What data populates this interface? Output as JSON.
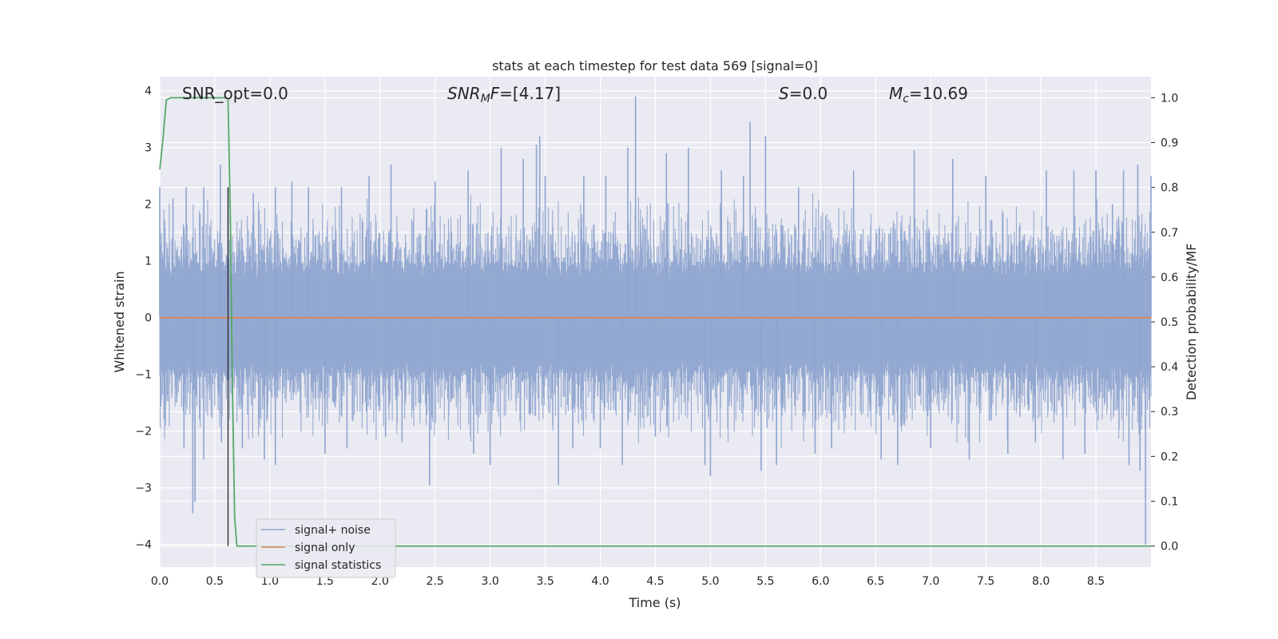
{
  "chart_data": {
    "type": "line",
    "title": "stats at each timestep for test data 569 [signal=0]",
    "xlabel": "Time (s)",
    "ylabel": "Whitened strain",
    "y2label": "Detection probability/MF",
    "xlim": [
      0,
      9.0
    ],
    "ylim": [
      -4.4,
      4.25
    ],
    "y2lim": [
      -0.047,
      1.047
    ],
    "x_ticks": [
      "0.0",
      "0.5",
      "1.0",
      "1.5",
      "2.0",
      "2.5",
      "3.0",
      "3.5",
      "4.0",
      "4.5",
      "5.0",
      "5.5",
      "6.0",
      "6.5",
      "7.0",
      "7.5",
      "8.0",
      "8.5"
    ],
    "y_ticks": [
      "4",
      "3",
      "2",
      "1",
      "0",
      "−1",
      "−2",
      "−3",
      "−4"
    ],
    "y2_ticks": [
      "1.0",
      "0.9",
      "0.8",
      "0.7",
      "0.6",
      "0.5",
      "0.4",
      "0.3",
      "0.2",
      "0.1",
      "0.0"
    ],
    "grid": true,
    "legend_position": "lower-left",
    "annotations": {
      "snr_opt": "SNR_opt=0.0",
      "snr_mf": "=[4.17]",
      "snr_mf_sym": "SNR",
      "snr_mf_sub": "M",
      "snr_mf_f": "F",
      "s_sym": "S",
      "s_val": "=0.0",
      "mc_sym": "M",
      "mc_sub": "c",
      "mc_val": "=10.69"
    },
    "marker_line_x": 0.62,
    "series": [
      {
        "name": "signal+ noise",
        "color": "#8fa5cf",
        "axis": "left",
        "description_values": "noise trace approx. uniform band",
        "peaks": [
          [
            0.0,
            2.3
          ],
          [
            0.05,
            -1.9
          ],
          [
            0.12,
            2.1
          ],
          [
            0.22,
            -2.3
          ],
          [
            0.24,
            2.3
          ],
          [
            0.3,
            -3.45
          ],
          [
            0.32,
            -3.25
          ],
          [
            0.4,
            2.0
          ],
          [
            0.4,
            -2.5
          ],
          [
            0.4,
            2.3
          ],
          [
            0.55,
            2.7
          ],
          [
            0.56,
            -2.2
          ],
          [
            0.62,
            2.3
          ],
          [
            0.75,
            -2.3
          ],
          [
            0.85,
            2.2
          ],
          [
            0.95,
            -2.5
          ],
          [
            1.05,
            2.3
          ],
          [
            1.05,
            -2.6
          ],
          [
            1.2,
            2.4
          ],
          [
            1.35,
            2.3
          ],
          [
            1.5,
            -2.4
          ],
          [
            1.65,
            2.3
          ],
          [
            1.7,
            -2.3
          ],
          [
            1.9,
            2.5
          ],
          [
            2.05,
            -2.1
          ],
          [
            2.1,
            2.7
          ],
          [
            2.2,
            -2.2
          ],
          [
            2.45,
            -2.95
          ],
          [
            2.5,
            2.4
          ],
          [
            2.8,
            2.6
          ],
          [
            2.85,
            -2.4
          ],
          [
            3.0,
            -2.6
          ],
          [
            3.1,
            3.0
          ],
          [
            3.3,
            2.8
          ],
          [
            3.42,
            3.05
          ],
          [
            3.45,
            3.2
          ],
          [
            3.5,
            2.5
          ],
          [
            3.62,
            -2.95
          ],
          [
            3.75,
            -2.3
          ],
          [
            3.85,
            2.5
          ],
          [
            4.0,
            -2.3
          ],
          [
            4.05,
            2.5
          ],
          [
            4.2,
            -2.6
          ],
          [
            4.25,
            3.0
          ],
          [
            4.32,
            3.9
          ],
          [
            4.5,
            -2.1
          ],
          [
            4.6,
            2.9
          ],
          [
            4.8,
            3.0
          ],
          [
            4.95,
            -2.6
          ],
          [
            5.0,
            -2.8
          ],
          [
            5.1,
            2.6
          ],
          [
            5.3,
            2.5
          ],
          [
            5.36,
            3.45
          ],
          [
            5.46,
            -2.7
          ],
          [
            5.5,
            3.2
          ],
          [
            5.6,
            -2.6
          ],
          [
            5.8,
            2.3
          ],
          [
            5.95,
            -2.4
          ],
          [
            6.1,
            -2.3
          ],
          [
            6.3,
            2.6
          ],
          [
            6.55,
            -2.5
          ],
          [
            6.7,
            -2.6
          ],
          [
            6.85,
            2.95
          ],
          [
            7.0,
            -2.3
          ],
          [
            7.2,
            2.8
          ],
          [
            7.35,
            -2.5
          ],
          [
            7.5,
            2.5
          ],
          [
            7.7,
            -2.4
          ],
          [
            7.95,
            -2.2
          ],
          [
            8.05,
            2.6
          ],
          [
            8.2,
            -2.5
          ],
          [
            8.3,
            2.6
          ],
          [
            8.4,
            -2.4
          ],
          [
            8.5,
            2.6
          ],
          [
            8.65,
            2.0
          ],
          [
            8.75,
            2.6
          ],
          [
            8.8,
            -2.6
          ],
          [
            8.88,
            2.7
          ],
          [
            8.9,
            -2.7
          ],
          [
            8.95,
            -4.0
          ],
          [
            9.0,
            2.5
          ]
        ]
      },
      {
        "name": "signal only",
        "color": "#dd8452",
        "axis": "left",
        "x": [
          0.0,
          9.0
        ],
        "y": [
          0.0,
          0.0
        ]
      },
      {
        "name": "signal statistics",
        "color": "#55a868",
        "axis": "right",
        "x": [
          0.0,
          0.03,
          0.06,
          0.1,
          0.2,
          0.3,
          0.4,
          0.5,
          0.55,
          0.6,
          0.62,
          0.64,
          0.66,
          0.68,
          0.7,
          0.75,
          0.8,
          1.0,
          2.0,
          4.0,
          6.0,
          8.0,
          9.0
        ],
        "y": [
          0.84,
          0.91,
          0.995,
          1.0,
          1.0,
          1.0,
          1.0,
          1.0,
          1.0,
          1.0,
          0.998,
          0.75,
          0.35,
          0.065,
          0.0,
          0.0,
          0.0,
          0.0,
          0.0,
          0.0,
          0.0,
          0.0,
          0.0
        ]
      }
    ]
  }
}
